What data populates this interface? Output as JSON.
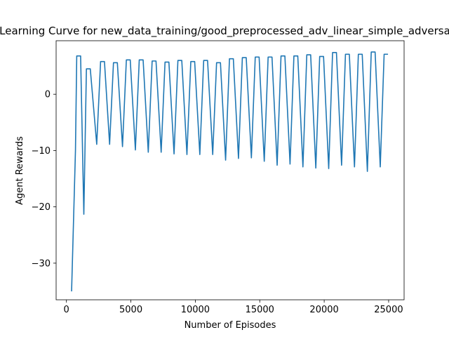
{
  "chart_data": {
    "type": "line",
    "title": "Learning Curve for new_data_training/good_preprocessed_adv_linear_simple_adversary",
    "xlabel": "Number of Episodes",
    "ylabel": "Agent Rewards",
    "xlim": [
      -800,
      26200
    ],
    "ylim": [
      -36.5,
      9.5
    ],
    "xticks": [
      0,
      5000,
      10000,
      15000,
      20000,
      25000
    ],
    "xtick_labels": [
      "0",
      "5000",
      "10000",
      "15000",
      "20000",
      "25000"
    ],
    "yticks": [
      -30,
      -20,
      -10,
      0
    ],
    "ytick_labels": [
      "−30",
      "−20",
      "−10",
      "0"
    ],
    "grid": false,
    "colors": {
      "series": "#1f77b4"
    },
    "series": [
      {
        "name": "",
        "x": [
          400,
          700,
          800,
          1000,
          1100,
          1350,
          1550,
          1850,
          2350,
          2650,
          2950,
          3350,
          3650,
          3950,
          4350,
          4650,
          4950,
          5350,
          5650,
          5950,
          6350,
          6650,
          6950,
          7350,
          7650,
          7950,
          8350,
          8650,
          8950,
          9350,
          9650,
          9950,
          10350,
          10650,
          10950,
          11350,
          11650,
          11950,
          12350,
          12650,
          12950,
          13350,
          13650,
          13950,
          14350,
          14650,
          14950,
          15350,
          15650,
          15950,
          16350,
          16650,
          16950,
          17350,
          17650,
          17950,
          18350,
          18650,
          18950,
          19350,
          19650,
          19950,
          20350,
          20650,
          20950,
          21350,
          21650,
          21950,
          22350,
          22650,
          22950,
          23350,
          23650,
          23950,
          24350,
          24650,
          24950
        ],
        "values": [
          -35.0,
          -10.0,
          6.8,
          6.8,
          6.8,
          -21.3,
          4.5,
          4.5,
          -8.9,
          5.8,
          5.8,
          -8.9,
          5.6,
          5.6,
          -9.3,
          6.1,
          6.1,
          -9.9,
          6.1,
          6.1,
          -10.3,
          5.9,
          5.9,
          -10.3,
          5.7,
          5.7,
          -10.6,
          6.0,
          6.0,
          -10.7,
          5.8,
          5.8,
          -10.7,
          6.0,
          6.0,
          -10.7,
          5.6,
          5.6,
          -11.7,
          6.3,
          6.3,
          -11.4,
          6.5,
          6.5,
          -11.3,
          6.6,
          6.6,
          -11.9,
          6.6,
          6.6,
          -12.6,
          6.8,
          6.8,
          -12.4,
          6.8,
          6.8,
          -12.9,
          7.0,
          7.0,
          -13.1,
          6.7,
          6.7,
          -13.2,
          7.4,
          7.4,
          -12.6,
          7.1,
          7.1,
          -12.9,
          7.1,
          7.1,
          -13.7,
          7.5,
          7.5,
          -12.9,
          7.1,
          7.1
        ]
      }
    ]
  }
}
